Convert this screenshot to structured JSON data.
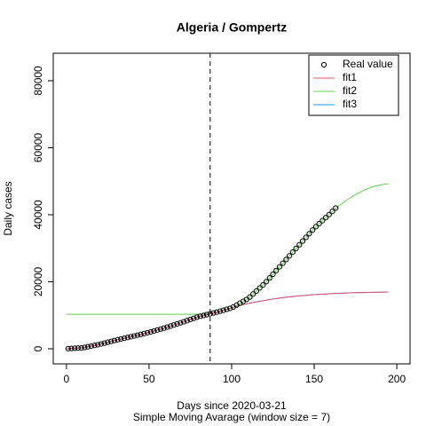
{
  "chart_data": {
    "type": "scatter_line",
    "title": "Algeria / Gompertz",
    "xlabel": "Days since 2020-03-21",
    "subtitle": "Simple Moving Avarage (window size = 7)",
    "ylabel": "Daily cases",
    "xlim": [
      -8,
      208
    ],
    "ylim": [
      -4500,
      88200
    ],
    "xticks": [
      0,
      50,
      100,
      150,
      200
    ],
    "yticks": [
      0,
      20000,
      40000,
      60000,
      80000
    ],
    "vline": 87,
    "legend": "top-right",
    "series": [
      {
        "name": "Real value",
        "color": "#000000",
        "style": "points",
        "x": [
          1,
          3,
          5,
          7,
          9,
          11,
          13,
          15,
          17,
          19,
          21,
          23,
          25,
          27,
          29,
          31,
          33,
          35,
          37,
          39,
          41,
          43,
          45,
          47,
          49,
          51,
          53,
          55,
          57,
          59,
          61,
          63,
          65,
          67,
          69,
          71,
          73,
          75,
          77,
          79,
          81,
          83,
          85,
          87,
          89,
          91,
          93,
          95,
          97,
          99,
          101,
          103,
          105,
          107,
          109,
          111,
          113,
          115,
          117,
          119,
          121,
          123,
          125,
          127,
          129,
          131,
          133,
          135,
          137,
          139,
          141,
          143,
          145,
          147,
          149,
          151,
          153,
          155,
          157,
          159,
          161,
          163
        ],
        "values": [
          50,
          100,
          160,
          220,
          270,
          400,
          600,
          800,
          1000,
          1200,
          1430,
          1690,
          1950,
          2210,
          2470,
          2710,
          2930,
          3150,
          3370,
          3590,
          3820,
          4060,
          4300,
          4540,
          4780,
          5040,
          5320,
          5600,
          5880,
          6160,
          6460,
          6780,
          7100,
          7420,
          7740,
          8070,
          8410,
          8750,
          9090,
          9430,
          9720,
          9960,
          10200,
          10440,
          10680,
          10940,
          11220,
          11500,
          11780,
          12060,
          12480,
          13040,
          13600,
          14160,
          14720,
          15450,
          16350,
          17250,
          18150,
          19050,
          20050,
          21150,
          22250,
          23350,
          24450,
          25550,
          26650,
          27750,
          28850,
          29950,
          31050,
          32150,
          33250,
          34350,
          35450,
          36450,
          37350,
          38250,
          39150,
          40050,
          41000,
          42000
        ]
      },
      {
        "name": "fit1",
        "color": "#df536b",
        "style": "line",
        "x": [
          0,
          5,
          10,
          15,
          20,
          25,
          30,
          35,
          40,
          45,
          50,
          55,
          60,
          65,
          70,
          75,
          80,
          85,
          90,
          95,
          100,
          105,
          110,
          115,
          120,
          125,
          130,
          135,
          140,
          145,
          150,
          155,
          160,
          165,
          170,
          175,
          180,
          185,
          190,
          195
        ],
        "values": [
          0,
          160,
          300,
          800,
          1300,
          1950,
          2600,
          3150,
          3700,
          4300,
          4900,
          5600,
          6300,
          7100,
          7900,
          8750,
          9600,
          10200,
          10800,
          11500,
          12200,
          12900,
          13500,
          14000,
          14450,
          14850,
          15200,
          15500,
          15750,
          15950,
          16150,
          16300,
          16450,
          16550,
          16650,
          16750,
          16800,
          16850,
          16900,
          16950
        ]
      },
      {
        "name": "fit2",
        "color": "#61d04f",
        "style": "line",
        "x": [
          0,
          5,
          10,
          15,
          20,
          25,
          30,
          35,
          40,
          45,
          50,
          55,
          60,
          65,
          70,
          75,
          80,
          85,
          90,
          95,
          100,
          105,
          110,
          115,
          120,
          125,
          130,
          135,
          140,
          145,
          150,
          155,
          160,
          165,
          170,
          175,
          180,
          185,
          190,
          195
        ],
        "values": [
          10300,
          10300,
          10300,
          10300,
          10300,
          10300,
          10300,
          10300,
          10300,
          10300,
          10300,
          10300,
          10300,
          10300,
          10300,
          10300,
          10300,
          10350,
          10800,
          11500,
          12200,
          13400,
          15000,
          17250,
          19500,
          22250,
          25000,
          27750,
          30500,
          33250,
          36000,
          38250,
          40500,
          42700,
          44500,
          46000,
          47300,
          48300,
          48900,
          49300
        ]
      },
      {
        "name": "fit3",
        "color": "#2297e6",
        "style": "line",
        "x": [
          0,
          5,
          10,
          15,
          20,
          25,
          30,
          35,
          40,
          45,
          50,
          55,
          60,
          65,
          70,
          75,
          80,
          85,
          90,
          95,
          100,
          105,
          110,
          115,
          120,
          125,
          130,
          135,
          140,
          145,
          150,
          155,
          160,
          165,
          170,
          175,
          180,
          185,
          190,
          195
        ],
        "values": [
          0,
          160,
          300,
          800,
          1300,
          1950,
          2600,
          3150,
          3700,
          4300,
          4900,
          5600,
          6300,
          7100,
          7900,
          8750,
          9600,
          10200,
          10800,
          11500,
          12200,
          12900,
          13500,
          14000,
          14450,
          14850,
          15200,
          15500,
          15750,
          15950,
          16150,
          16300,
          16450,
          16550,
          16650,
          16750,
          16800,
          16850,
          16900,
          16950
        ]
      }
    ]
  }
}
